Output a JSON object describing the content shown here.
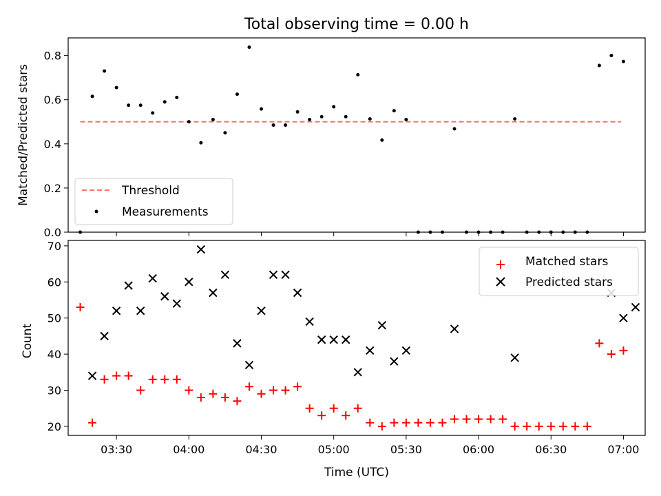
{
  "title": "Total observing time = 0.00 h",
  "xlabel": "Time (UTC)",
  "xticks": [
    "03:30",
    "04:00",
    "04:30",
    "05:00",
    "05:30",
    "06:00",
    "06:30",
    "07:00"
  ],
  "colors": {
    "threshold": "#ff7070",
    "measurements": "#000000",
    "matched": "#ff0000",
    "predicted": "#000000"
  },
  "chart_data": [
    {
      "type": "scatter",
      "ylabel": "Matched/Predicted stars",
      "ylim": [
        0,
        0.88
      ],
      "yticks": [
        "0.0",
        "0.2",
        "0.4",
        "0.6",
        "0.8"
      ],
      "legend_position": "lower-left",
      "threshold": {
        "name": "Threshold",
        "value": 0.5,
        "x_start": "03:15",
        "x_end": "06:59"
      },
      "series": [
        {
          "name": "Measurements",
          "x": [
            "03:15",
            "03:20",
            "03:25",
            "03:30",
            "03:35",
            "03:40",
            "03:45",
            "03:50",
            "03:55",
            "04:00",
            "04:05",
            "04:10",
            "04:15",
            "04:20",
            "04:25",
            "04:30",
            "04:35",
            "04:40",
            "04:45",
            "04:50",
            "04:55",
            "05:00",
            "05:05",
            "05:10",
            "05:15",
            "05:20",
            "05:25",
            "05:30",
            "05:35",
            "05:40",
            "05:45",
            "05:50",
            "05:55",
            "06:00",
            "06:05",
            "06:10",
            "06:15",
            "06:20",
            "06:25",
            "06:30",
            "06:35",
            "06:40",
            "06:45",
            "06:50",
            "06:55",
            "07:00"
          ],
          "y": [
            0.0,
            0.615,
            0.73,
            0.655,
            0.575,
            0.575,
            0.54,
            0.59,
            0.61,
            0.5,
            0.405,
            0.51,
            0.45,
            0.625,
            0.838,
            0.558,
            0.485,
            0.485,
            0.545,
            0.51,
            0.523,
            0.568,
            0.523,
            0.713,
            0.513,
            0.417,
            0.55,
            0.51,
            0.0,
            0.0,
            0.0,
            0.468,
            0.0,
            0.0,
            0.0,
            0.0,
            0.513,
            0.0,
            0.0,
            0.0,
            0.0,
            0.0,
            0.0,
            0.755,
            0.8,
            0.773
          ]
        }
      ]
    },
    {
      "type": "scatter",
      "ylabel": "Count",
      "ylim": [
        17.5,
        71.5
      ],
      "yticks": [
        "20",
        "30",
        "40",
        "50",
        "60",
        "70"
      ],
      "legend_position": "upper-right",
      "series": [
        {
          "name": "Matched stars",
          "x": [
            "03:15",
            "03:20",
            "03:25",
            "03:30",
            "03:35",
            "03:40",
            "03:45",
            "03:50",
            "03:55",
            "04:00",
            "04:05",
            "04:10",
            "04:15",
            "04:20",
            "04:25",
            "04:30",
            "04:35",
            "04:40",
            "04:45",
            "04:50",
            "04:55",
            "05:00",
            "05:05",
            "05:10",
            "05:15",
            "05:20",
            "05:25",
            "05:30",
            "05:35",
            "05:40",
            "05:45",
            "05:50",
            "05:55",
            "06:00",
            "06:05",
            "06:10",
            "06:15",
            "06:20",
            "06:25",
            "06:30",
            "06:35",
            "06:40",
            "06:45",
            "06:50",
            "06:55",
            "07:00"
          ],
          "y": [
            53,
            21,
            33,
            34,
            34,
            30,
            33,
            33,
            33,
            30,
            28,
            29,
            28,
            27,
            31,
            29,
            30,
            30,
            31,
            25,
            23,
            25,
            23,
            25,
            21,
            20,
            21,
            21,
            21,
            21,
            21,
            22,
            22,
            22,
            22,
            22,
            20,
            20,
            20,
            20,
            20,
            20,
            20,
            43,
            40,
            41
          ]
        },
        {
          "name": "Predicted stars",
          "x": [
            "03:20",
            "03:25",
            "03:30",
            "03:35",
            "03:40",
            "03:45",
            "03:50",
            "03:55",
            "04:00",
            "04:05",
            "04:10",
            "04:15",
            "04:20",
            "04:25",
            "04:30",
            "04:35",
            "04:40",
            "04:45",
            "04:50",
            "04:55",
            "05:00",
            "05:05",
            "05:10",
            "05:15",
            "05:20",
            "05:25",
            "05:30",
            "05:50",
            "06:15",
            "06:55",
            "07:00",
            "07:05"
          ],
          "y": [
            34,
            45,
            52,
            59,
            52,
            61,
            56,
            54,
            60,
            69,
            57,
            62,
            43,
            37,
            52,
            62,
            62,
            57,
            49,
            44,
            44,
            44,
            35,
            41,
            48,
            38,
            41,
            47,
            39,
            57,
            50,
            53
          ]
        }
      ]
    }
  ]
}
